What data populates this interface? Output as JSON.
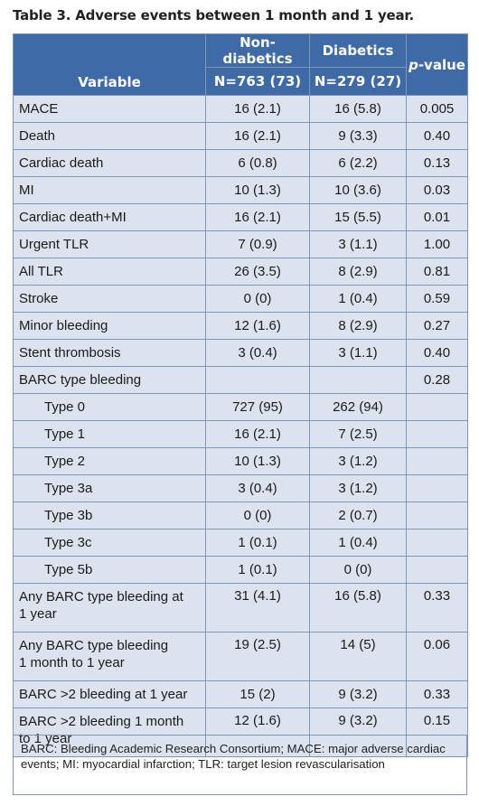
{
  "title": "Table 3. Adverse events between 1 month and 1 year.",
  "header": {
    "variable": "Variable",
    "group1_name": "Non-diabetics",
    "group1_n": "N=763 (73)",
    "group2_name": "Diabetics",
    "group2_n": "N=279 (27)",
    "pvalue_italic": "p",
    "pvalue_rest": "-value"
  },
  "rows": [
    {
      "label": "MACE",
      "non_diabetics": "16 (2.1)",
      "diabetics": "16 (5.8)",
      "p": "0.005"
    },
    {
      "label": "Death",
      "non_diabetics": "16 (2.1)",
      "diabetics": "9 (3.3)",
      "p": "0.40"
    },
    {
      "label": "Cardiac death",
      "non_diabetics": "6 (0.8)",
      "diabetics": "6 (2.2)",
      "p": "0.13"
    },
    {
      "label": "MI",
      "non_diabetics": "10 (1.3)",
      "diabetics": "10 (3.6)",
      "p": "0.03"
    },
    {
      "label": "Cardiac death+MI",
      "non_diabetics": "16 (2.1)",
      "diabetics": "15 (5.5)",
      "p": "0.01"
    },
    {
      "label": "Urgent TLR",
      "non_diabetics": "7 (0.9)",
      "diabetics": "3 (1.1)",
      "p": "1.00"
    },
    {
      "label": "All TLR",
      "non_diabetics": "26 (3.5)",
      "diabetics": "8 (2.9)",
      "p": "0.81"
    },
    {
      "label": "Stroke",
      "non_diabetics": "0 (0)",
      "diabetics": "1 (0.4)",
      "p": "0.59"
    },
    {
      "label": "Minor bleeding",
      "non_diabetics": "12 (1.6)",
      "diabetics": "8 (2.9)",
      "p": "0.27"
    },
    {
      "label": "Stent thrombosis",
      "non_diabetics": "3 (0.4)",
      "diabetics": "3 (1.1)",
      "p": "0.40"
    },
    {
      "label": "BARC type bleeding",
      "non_diabetics": "",
      "diabetics": "",
      "p": "0.28"
    },
    {
      "label": "Type 0",
      "non_diabetics": "727 (95)",
      "diabetics": "262 (94)",
      "p": ""
    },
    {
      "label": "Type 1",
      "non_diabetics": "16 (2.1)",
      "diabetics": "7 (2.5)",
      "p": ""
    },
    {
      "label": "Type 2",
      "non_diabetics": "10 (1.3)",
      "diabetics": "3 (1.2)",
      "p": ""
    },
    {
      "label": "Type 3a",
      "non_diabetics": "3 (0.4)",
      "diabetics": "3 (1.2)",
      "p": ""
    },
    {
      "label": "Type 3b",
      "non_diabetics": "0 (0)",
      "diabetics": "2 (0.7)",
      "p": ""
    },
    {
      "label": "Type 3c",
      "non_diabetics": "1 (0.1)",
      "diabetics": "1 (0.4)",
      "p": ""
    },
    {
      "label": "Type 5b",
      "non_diabetics": "1 (0.1)",
      "diabetics": "0 (0)",
      "p": ""
    },
    {
      "label_line1": "Any BARC type bleeding at",
      "label_line2": "1 year",
      "non_diabetics": "31 (4.1)",
      "diabetics": "16 (5.8)",
      "p": "0.33"
    },
    {
      "label_line1": "Any BARC type bleeding",
      "label_line2": "1 month to 1 year",
      "non_diabetics": "19 (2.5)",
      "diabetics": "14 (5)",
      "p": "0.06"
    },
    {
      "label": "BARC >2 bleeding at 1 year",
      "non_diabetics": "15 (2)",
      "diabetics": "9 (3.2)",
      "p": "0.33"
    },
    {
      "label_line1": "BARC >2 bleeding 1 month",
      "label_line2": "to 1 year",
      "non_diabetics": "12 (1.6)",
      "diabetics": "9 (3.2)",
      "p": "0.15"
    }
  ],
  "footnote": "BARC: Bleeding Academic Research Consortium; MACE: major adverse cardiac events; MI: myocardial infarction; TLR: target lesion revascularisation"
}
